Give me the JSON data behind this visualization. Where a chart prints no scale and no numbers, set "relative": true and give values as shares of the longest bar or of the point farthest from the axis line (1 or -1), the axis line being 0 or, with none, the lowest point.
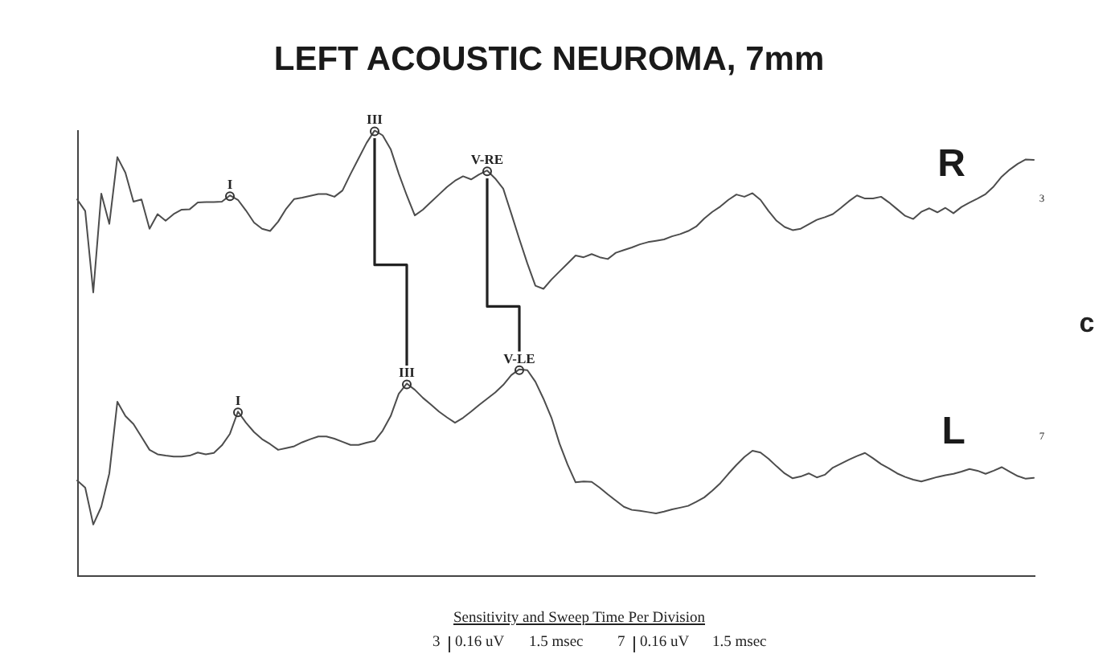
{
  "chart_data": {
    "type": "line",
    "title": "LEFT ACOUSTIC NEUROMA, 7mm",
    "categories": [
      null,
      null,
      null,
      null,
      null,
      null,
      null,
      null,
      null,
      null,
      null,
      null,
      null,
      null,
      null,
      null,
      null,
      null,
      null,
      null,
      null,
      null,
      null,
      null,
      null,
      null,
      null,
      null,
      null,
      null,
      null,
      null,
      null,
      null,
      null,
      null,
      null,
      null,
      null,
      null,
      null,
      null,
      null,
      null,
      null,
      null,
      null,
      null,
      null,
      null,
      null,
      null,
      null,
      null,
      null,
      null,
      null,
      null,
      null,
      null,
      null,
      null,
      null,
      null,
      null,
      null,
      null,
      null,
      null,
      null,
      null,
      null,
      null,
      null,
      null,
      null,
      null,
      null,
      null,
      null,
      null,
      null,
      null,
      null,
      null,
      null,
      null,
      null,
      null,
      null,
      null,
      null,
      null,
      null,
      null,
      null,
      null,
      null,
      null,
      null,
      null,
      null,
      null,
      null,
      null,
      null,
      null,
      null,
      null,
      null,
      null,
      null,
      null,
      null,
      null,
      null,
      null,
      null,
      null,
      null
    ],
    "series": [
      {
        "name": "R",
        "color": "#4d4d4d",
        "values": [
          0.845,
          0.819,
          0.636,
          0.858,
          0.79,
          0.94,
          0.905,
          0.84,
          0.845,
          0.779,
          0.812,
          0.797,
          0.812,
          0.822,
          0.823,
          0.838,
          0.839,
          0.839,
          0.84,
          0.854,
          0.844,
          0.82,
          0.793,
          0.779,
          0.774,
          0.795,
          0.824,
          0.846,
          0.849,
          0.853,
          0.857,
          0.857,
          0.851,
          0.865,
          0.902,
          0.937,
          0.972,
          1,
          0.989,
          0.958,
          0.903,
          0.854,
          0.809,
          0.822,
          0.839,
          0.856,
          0.873,
          0.887,
          0.897,
          0.89,
          0.901,
          0.91,
          0.892,
          0.869,
          0.813,
          0.756,
          0.701,
          0.651,
          0.644,
          0.665,
          0.683,
          0.701,
          0.719,
          0.715,
          0.722,
          0.715,
          0.711,
          0.725,
          0.731,
          0.737,
          0.744,
          0.749,
          0.752,
          0.755,
          0.762,
          0.767,
          0.774,
          0.784,
          0.802,
          0.817,
          0.829,
          0.844,
          0.856,
          0.851,
          0.859,
          0.844,
          0.819,
          0.797,
          0.783,
          0.776,
          0.779,
          0.789,
          0.799,
          0.805,
          0.812,
          0.826,
          0.841,
          0.854,
          0.847,
          0.847,
          0.851,
          0.838,
          0.823,
          0.808,
          0.801,
          0.817,
          0.825,
          0.816,
          0.826,
          0.814,
          0.828,
          0.838,
          0.847,
          0.857,
          0.874,
          0.896,
          0.912,
          0.925,
          0.935,
          0.934
        ]
      },
      {
        "name": "L",
        "color": "#4d4d4d",
        "values": [
          0.213,
          0.197,
          0.114,
          0.154,
          0.229,
          0.39,
          0.358,
          0.34,
          0.311,
          0.282,
          0.272,
          0.269,
          0.267,
          0.267,
          0.269,
          0.276,
          0.272,
          0.275,
          0.292,
          0.318,
          0.368,
          0.343,
          0.322,
          0.306,
          0.295,
          0.282,
          0.286,
          0.29,
          0.299,
          0.306,
          0.312,
          0.312,
          0.307,
          0.3,
          0.293,
          0.293,
          0.298,
          0.302,
          0.325,
          0.358,
          0.408,
          0.431,
          0.417,
          0.399,
          0.384,
          0.368,
          0.355,
          0.343,
          0.354,
          0.368,
          0.383,
          0.397,
          0.411,
          0.428,
          0.45,
          0.463,
          0.461,
          0.435,
          0.397,
          0.354,
          0.296,
          0.249,
          0.209,
          0.211,
          0.21,
          0.197,
          0.182,
          0.168,
          0.154,
          0.147,
          0.145,
          0.142,
          0.139,
          0.143,
          0.148,
          0.152,
          0.156,
          0.165,
          0.175,
          0.19,
          0.207,
          0.228,
          0.248,
          0.266,
          0.28,
          0.276,
          0.262,
          0.245,
          0.229,
          0.218,
          0.222,
          0.229,
          0.22,
          0.226,
          0.242,
          0.251,
          0.26,
          0.268,
          0.275,
          0.263,
          0.25,
          0.24,
          0.229,
          0.221,
          0.215,
          0.211,
          0.216,
          0.221,
          0.225,
          0.228,
          0.233,
          0.239,
          0.235,
          0.228,
          0.235,
          0.243,
          0.233,
          0.223,
          0.217,
          0.219
        ]
      }
    ],
    "relative": true,
    "legend": false,
    "annotations": [
      "I",
      "III",
      "V-RE",
      "I",
      "III",
      "V-LE",
      "3",
      "7",
      "c",
      "Sensitivity and Sweep Time Per Division",
      "3",
      "0.16 uV",
      "1.5 msec",
      "7",
      "0.16 uV",
      "1.5 msec"
    ]
  }
}
